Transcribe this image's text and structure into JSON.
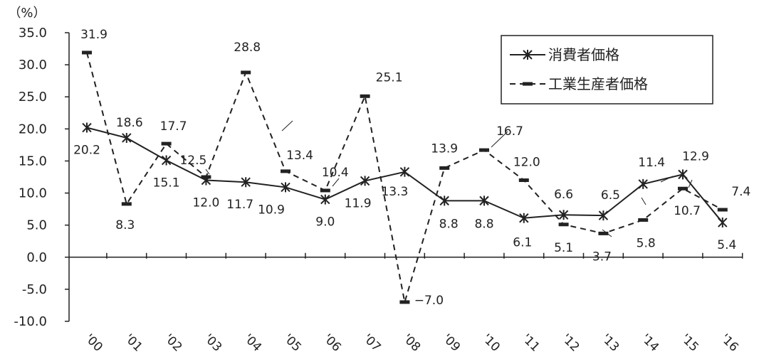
{
  "chart_data": {
    "type": "line",
    "unit_label": "（%）",
    "categories": [
      "'00",
      "'01",
      "'02",
      "'03",
      "'04",
      "'05",
      "'06",
      "'07",
      "'08",
      "'09",
      "'10",
      "'11",
      "'12",
      "'13",
      "'14",
      "'15",
      "'16"
    ],
    "ylim": [
      -10,
      35
    ],
    "yticks": [
      "35.0",
      "30.0",
      "25.0",
      "20.0",
      "15.0",
      "10.0",
      "5.0",
      "0.0",
      "-5.0",
      "-10.0"
    ],
    "grid": false,
    "legend_position": "top-right",
    "series": [
      {
        "name": "消費者価格",
        "style": "solid",
        "marker": "asterisk",
        "values": [
          20.2,
          18.6,
          15.1,
          12.0,
          11.7,
          10.9,
          9.0,
          11.9,
          13.3,
          8.8,
          8.8,
          6.1,
          6.6,
          6.5,
          11.4,
          12.9,
          5.4
        ],
        "labels": [
          "20.2",
          "18.6",
          "15.1",
          "12.0",
          "11.7",
          "10.9",
          "9.0",
          "11.9",
          "13.3",
          "8.8",
          "8.8",
          "6.1",
          "6.6",
          "6.5",
          "11.4",
          "12.9",
          "5.4"
        ]
      },
      {
        "name": "工業生産者価格",
        "style": "dashed",
        "marker": "dash",
        "values": [
          31.9,
          8.3,
          17.7,
          12.5,
          28.8,
          13.4,
          10.4,
          25.1,
          -7.0,
          13.9,
          16.7,
          12.0,
          5.1,
          3.7,
          5.8,
          10.7,
          7.4
        ],
        "labels": [
          "31.9",
          "8.3",
          "17.7",
          "12.5",
          "28.8",
          "13.4",
          "10.4",
          "25.1",
          "−7.0",
          "13.9",
          "16.7",
          "12.0",
          "5.1",
          "3.7",
          "5.8",
          "10.7",
          "7.4"
        ]
      }
    ],
    "colors": {
      "line": "#222222",
      "background": "#ffffff"
    }
  }
}
